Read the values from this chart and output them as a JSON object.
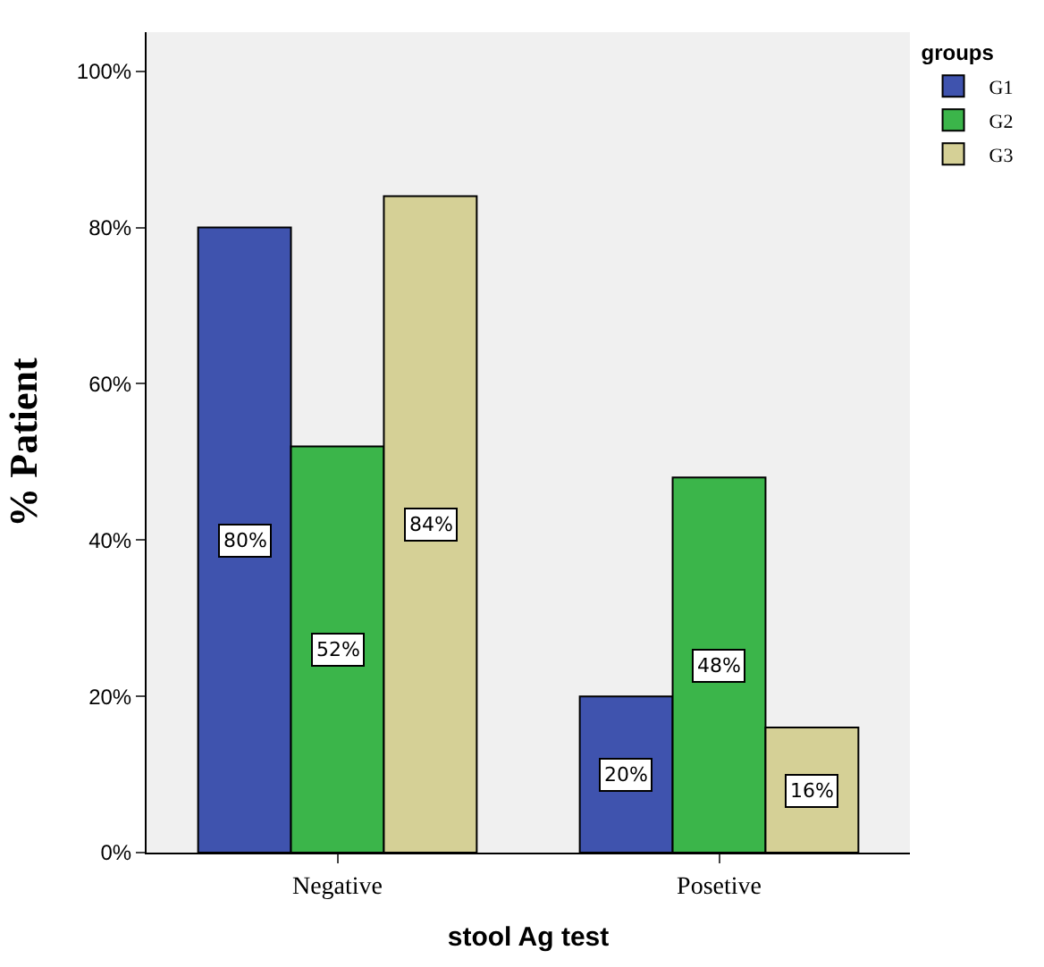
{
  "chart_data": {
    "type": "bar",
    "xlabel": "stool Ag test",
    "ylabel": "% Patient",
    "legend_title": "groups",
    "legend": "top right",
    "categories": [
      "Negative",
      "Posetive"
    ],
    "series": [
      {
        "name": "G1",
        "color": "#3f53ae",
        "values": [
          80,
          20
        ],
        "value_labels": [
          "80%",
          "20%"
        ]
      },
      {
        "name": "G2",
        "color": "#3bb54a",
        "values": [
          52,
          48
        ],
        "value_labels": [
          "52%",
          "48%"
        ]
      },
      {
        "name": "G3",
        "color": "#d5d096",
        "values": [
          84,
          16
        ],
        "value_labels": [
          "84%",
          "16%"
        ]
      }
    ],
    "ylim": [
      0,
      105
    ],
    "yticks": [
      {
        "value": 0,
        "label": "0%"
      },
      {
        "value": 20,
        "label": "20%"
      },
      {
        "value": 40,
        "label": "40%"
      },
      {
        "value": 60,
        "label": "60%"
      },
      {
        "value": 80,
        "label": "80%"
      },
      {
        "value": 100,
        "label": "100%"
      }
    ],
    "grid": false
  }
}
